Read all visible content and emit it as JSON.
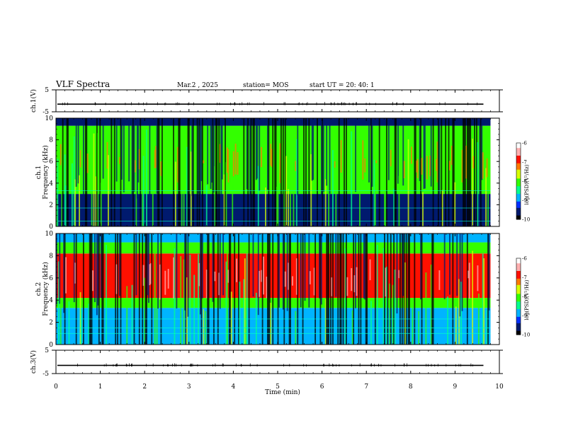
{
  "header": {
    "title": "VLF Spectra",
    "date": "Mar.2 , 2025",
    "station": "station= MOS",
    "start": "start UT = 20: 40: 1"
  },
  "chart_data": [
    {
      "type": "line",
      "panel": "waveform-ch1",
      "ylabel": "ch.1(V)",
      "ylim": [
        -5,
        5
      ],
      "yticks": [
        "5",
        "-5"
      ],
      "xlim": [
        0,
        10
      ],
      "series": [
        {
          "values_note": null,
          "level": -1.5
        }
      ]
    },
    {
      "type": "heatmap",
      "panel": "spectrogram-ch1",
      "ylabel": "Frequency (kHz)",
      "panel_label": "ch.1",
      "ylim": [
        0,
        10
      ],
      "yticks": [
        "0",
        "2",
        "4",
        "6",
        "8",
        "10"
      ],
      "xlim": [
        0,
        9.8
      ],
      "colorbar": {
        "label": "log(PSD)(V²/Hz)",
        "range": [
          -10,
          -6
        ],
        "ticks": [
          "-6",
          "-7",
          "-8",
          "-9",
          "-10"
        ]
      },
      "bands": [
        {
          "fmin": 0.0,
          "fmax": 3.0,
          "level": -9.6
        },
        {
          "fmin": 3.0,
          "fmax": 9.3,
          "level": -8.2
        },
        {
          "fmin": 9.3,
          "fmax": 10.0,
          "level": -9.7
        }
      ],
      "lines_khz": [
        0.5,
        1.7,
        3.3
      ]
    },
    {
      "type": "heatmap",
      "panel": "spectrogram-ch2",
      "ylabel": "Frequency (kHz)",
      "panel_label": "ch.2",
      "ylim": [
        0,
        10
      ],
      "yticks": [
        "0",
        "2",
        "4",
        "6",
        "8",
        "10"
      ],
      "xlim": [
        0,
        9.8
      ],
      "colorbar": {
        "label": "log(PSD)(V²/Hz)",
        "range": [
          -10,
          -6
        ],
        "ticks": [
          "-6",
          "-7",
          "-8",
          "-9",
          "-10"
        ]
      },
      "bands": [
        {
          "fmin": 0.0,
          "fmax": 3.3,
          "level": -9.0
        },
        {
          "fmin": 3.3,
          "fmax": 4.2,
          "level": -7.9
        },
        {
          "fmin": 4.2,
          "fmax": 8.2,
          "level": -6.9
        },
        {
          "fmin": 8.2,
          "fmax": 9.2,
          "level": -8.0
        },
        {
          "fmin": 9.2,
          "fmax": 10.0,
          "level": -9.0
        }
      ],
      "lines_khz": [
        1.0,
        1.5,
        2.3
      ]
    },
    {
      "type": "line",
      "panel": "waveform-ch3",
      "ylabel": "ch.3(V)",
      "ylim": [
        -5,
        5
      ],
      "yticks": [
        "5",
        "-5"
      ],
      "xlim": [
        0,
        10
      ],
      "series": [
        {
          "values_note": null,
          "level": -1.5
        }
      ]
    }
  ],
  "xaxis": {
    "label": "Time (min)",
    "range": [
      0,
      10
    ],
    "ticks": [
      "0",
      "1",
      "2",
      "3",
      "4",
      "5",
      "6",
      "7",
      "8",
      "9",
      "10"
    ]
  },
  "colors": {
    "background": "#ffffff",
    "axes": "#000000",
    "colormap": [
      "#000000",
      "#001a6e",
      "#0030ff",
      "#00b4ff",
      "#00ff90",
      "#33ff00",
      "#d8ff00",
      "#ff7a00",
      "#ff1000",
      "#ffb0b0",
      "#ffffff"
    ]
  }
}
